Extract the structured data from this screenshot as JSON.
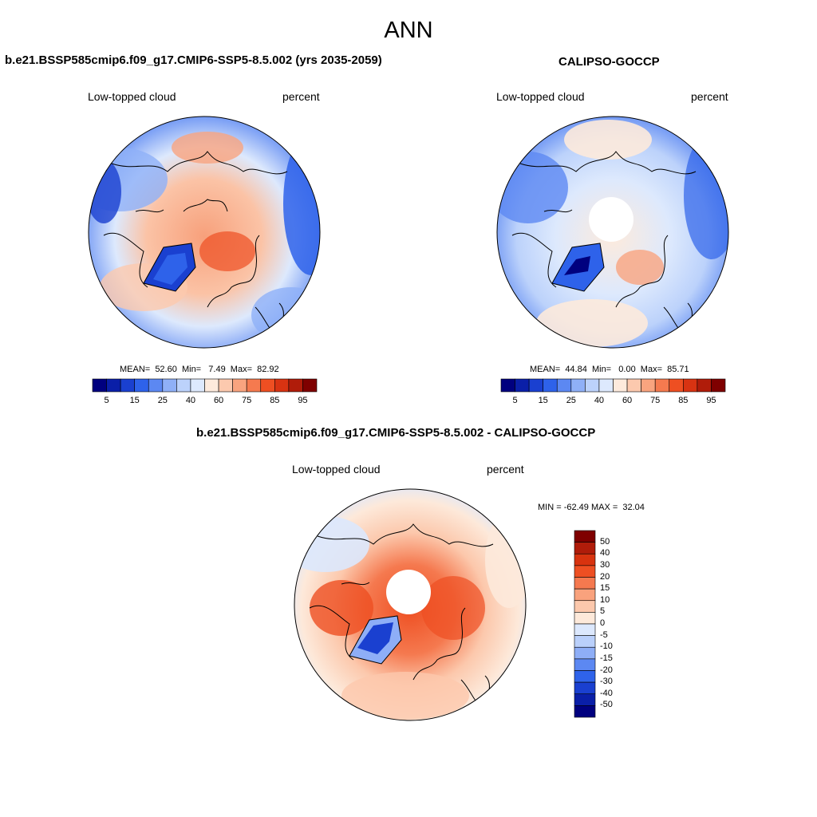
{
  "page": {
    "title": "ANN"
  },
  "panels": [
    {
      "case_title": "b.e21.BSSP585cmip6.f09_g17.CMIP6-SSP5-8.5.002 (yrs 2035-2059)",
      "left_label": "Low-topped cloud",
      "right_label": "percent",
      "stats": "MEAN=  52.60  Min=   7.49  Max=  82.92"
    },
    {
      "case_title": "CALIPSO-GOCCP",
      "left_label": "Low-topped cloud",
      "right_label": "percent",
      "stats": "MEAN=  44.84  Min=   0.00  Max=  85.71"
    },
    {
      "case_title": "b.e21.BSSP585cmip6.f09_g17.CMIP6-SSP5-8.5.002 - CALIPSO-GOCCP",
      "left_label": "Low-topped cloud",
      "right_label": "percent",
      "stats": "MIN = -62.49 MAX =  32.04"
    }
  ],
  "colorbar_abs": {
    "tick_labels": [
      "5",
      "15",
      "25",
      "40",
      "60",
      "75",
      "85",
      "95"
    ],
    "colors": [
      "#00007f",
      "#0a1fa8",
      "#1a40d0",
      "#2e62ea",
      "#5c88f2",
      "#8fb0f7",
      "#bcd2fb",
      "#dde9fd",
      "#fdeadc",
      "#fcc9ae",
      "#f9a47f",
      "#f57a4f",
      "#ee4f22",
      "#d83312",
      "#b01c0a",
      "#7f0000"
    ]
  },
  "colorbar_diff": {
    "tick_labels": [
      "50",
      "40",
      "30",
      "20",
      "15",
      "10",
      "5",
      "0",
      "-5",
      "-10",
      "-15",
      "-20",
      "-30",
      "-40",
      "-50"
    ],
    "colors": [
      "#7f0000",
      "#b01c0a",
      "#d8330f",
      "#ee4f22",
      "#f5794f",
      "#f9a27d",
      "#fcc8ac",
      "#fde9da",
      "#dce8fd",
      "#bad0fb",
      "#8eaef7",
      "#5c88f2",
      "#2f63ea",
      "#1a40d0",
      "#0a1fa8",
      "#00007f"
    ]
  },
  "colors": {
    "map_abs_mid": "#f9a47f",
    "map_low": "#1a40d0",
    "map_high": "#ee4f22"
  }
}
